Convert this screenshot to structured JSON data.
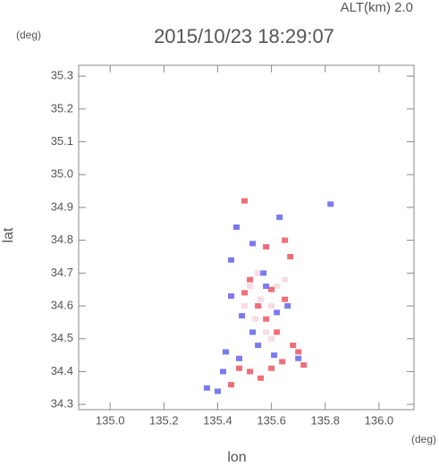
{
  "chart_data": {
    "type": "scatter",
    "title": "2015/10/23 18:29:07",
    "subtitle": "ALT(km) 2.0",
    "y_unit": "(deg)",
    "x_unit": "(deg)",
    "xlabel": "lon",
    "ylabel": "lat",
    "xlim": [
      134.883,
      136.13
    ],
    "ylim": [
      34.284,
      35.333
    ],
    "xticks": [
      {
        "value": 135,
        "label": "135.0"
      },
      135.2,
      135.4,
      135.6,
      135.8,
      {
        "value": 136,
        "label": "136.0"
      }
    ],
    "yticks": [
      34.3,
      34.4,
      34.5,
      34.6,
      34.7,
      34.8,
      34.9,
      {
        "value": 35,
        "label": "35.0"
      },
      35.1,
      35.2,
      35.3
    ],
    "series": [
      {
        "color": "#f8dbe3",
        "x": [
          135.52,
          135.56,
          135.6,
          135.54,
          135.58,
          135.5,
          135.62,
          135.55,
          135.65,
          135.6
        ],
        "values": [
          34.66,
          34.62,
          34.6,
          34.56,
          34.52,
          34.6,
          34.66,
          34.7,
          34.68,
          34.5
        ]
      },
      {
        "color": "#ee6e78",
        "x": [
          135.5,
          135.58,
          135.65,
          135.48,
          135.52,
          135.6,
          135.64,
          135.7,
          135.62,
          135.55,
          135.6,
          135.52,
          135.65,
          135.58,
          135.68,
          135.45,
          135.56,
          135.67,
          135.72,
          135.5
        ],
        "values": [
          34.92,
          34.78,
          34.8,
          34.41,
          34.4,
          34.41,
          34.43,
          34.46,
          34.52,
          34.6,
          34.65,
          34.68,
          34.62,
          34.56,
          34.48,
          34.36,
          34.38,
          34.75,
          34.42,
          34.64
        ]
      },
      {
        "color": "#7b7bee",
        "x": [
          135.82,
          135.47,
          135.53,
          135.45,
          135.43,
          135.42,
          135.36,
          135.4,
          135.48,
          135.55,
          135.62,
          135.57,
          135.49,
          135.66,
          135.53,
          135.7,
          135.61,
          135.58,
          135.45,
          135.63
        ],
        "values": [
          34.91,
          34.84,
          34.79,
          34.63,
          34.46,
          34.4,
          34.35,
          34.34,
          34.44,
          34.48,
          34.58,
          34.7,
          34.57,
          34.6,
          34.52,
          34.44,
          34.45,
          34.66,
          34.74,
          34.87
        ]
      }
    ]
  }
}
